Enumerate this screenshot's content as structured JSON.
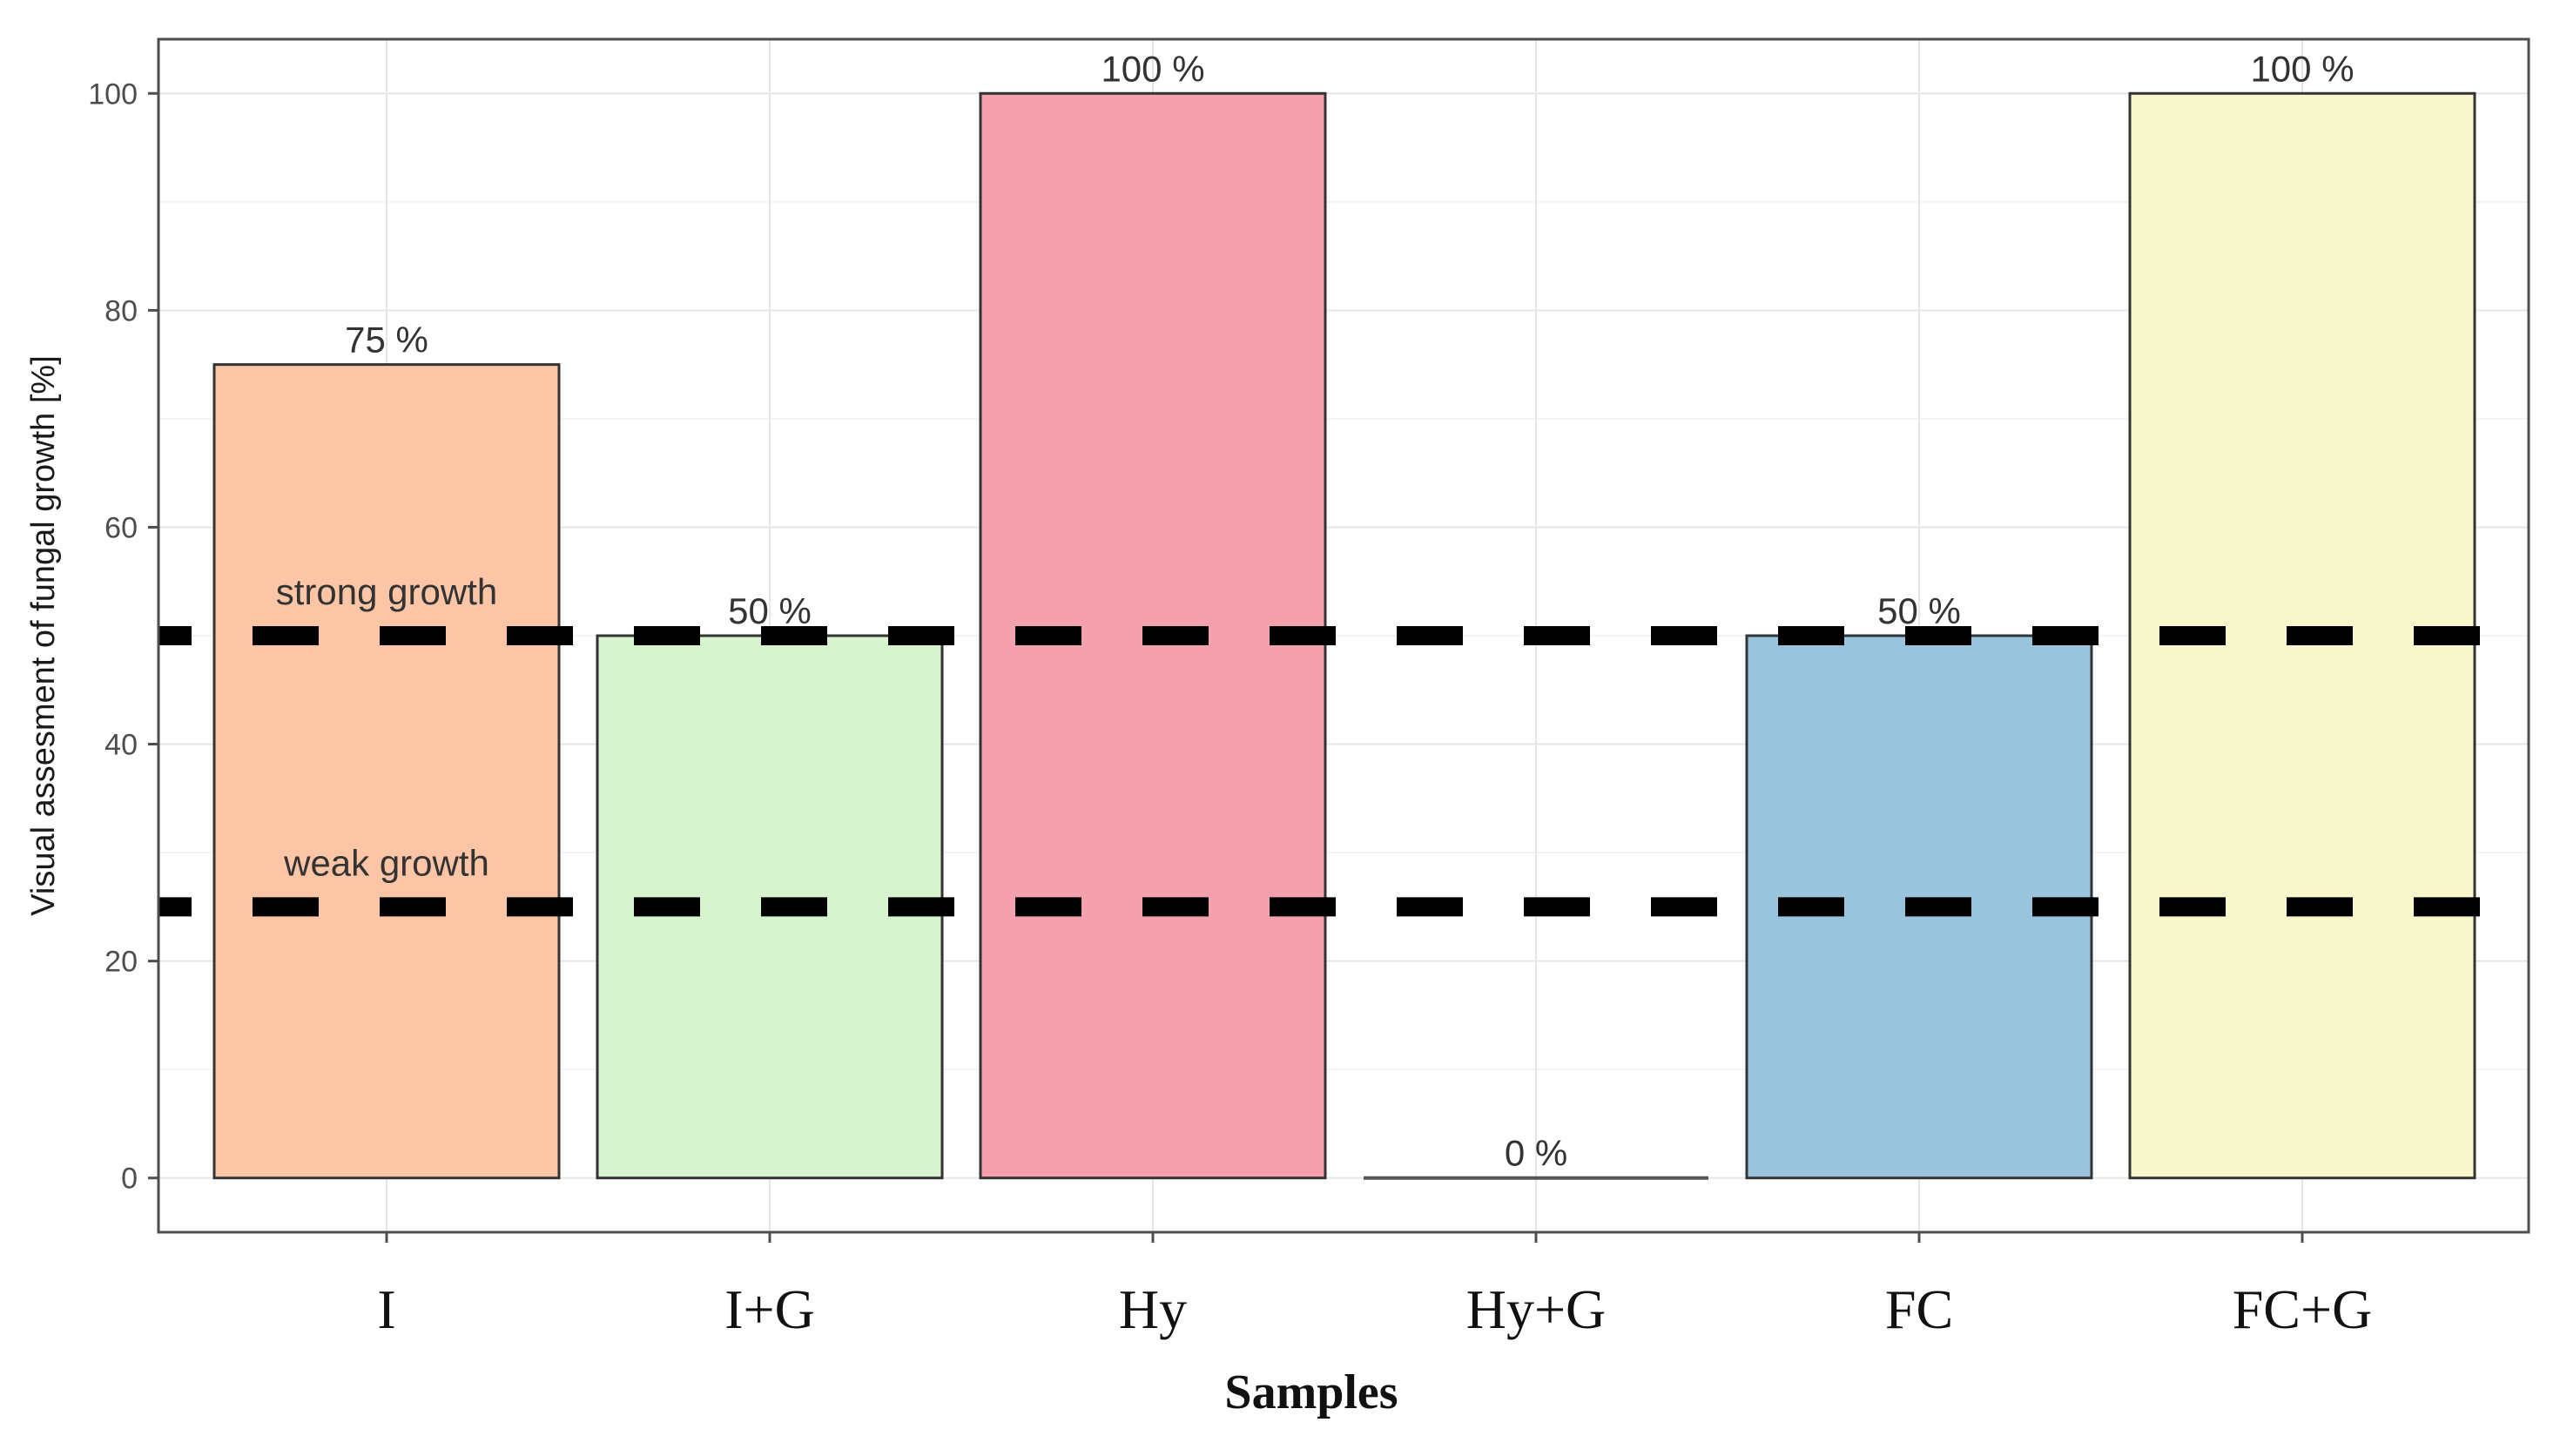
{
  "chart_data": {
    "type": "bar",
    "title": "",
    "xlabel": "Samples",
    "ylabel": "Visual assesment of fungal growth [%]",
    "ylim": [
      -5,
      105
    ],
    "yticks": [
      0,
      20,
      40,
      60,
      80,
      100
    ],
    "grid": true,
    "categories": [
      "I",
      "I+G",
      "Hy",
      "Hy+G",
      "FC",
      "FC+G"
    ],
    "values": [
      75,
      50,
      100,
      0,
      50,
      100
    ],
    "value_labels": [
      "75 %",
      "50 %",
      "100 %",
      "0 %",
      "50 %",
      "100 %"
    ],
    "bar_colors": [
      "#fcc5a6",
      "#d6f5cf",
      "#f5a0ad",
      "#ffffff",
      "#9ac4de",
      "#f8f8cc"
    ],
    "reference_lines": [
      {
        "value": 50,
        "label": "strong growth",
        "style": "dashed",
        "color": "#000000"
      },
      {
        "value": 25,
        "label": "weak growth",
        "style": "dashed",
        "color": "#000000"
      }
    ]
  },
  "colors": {
    "panel_border": "#4d4d4d",
    "grid_major": "#e6e6e6",
    "grid_minor": "#f3f3f3",
    "bar_outline": "#333333"
  }
}
